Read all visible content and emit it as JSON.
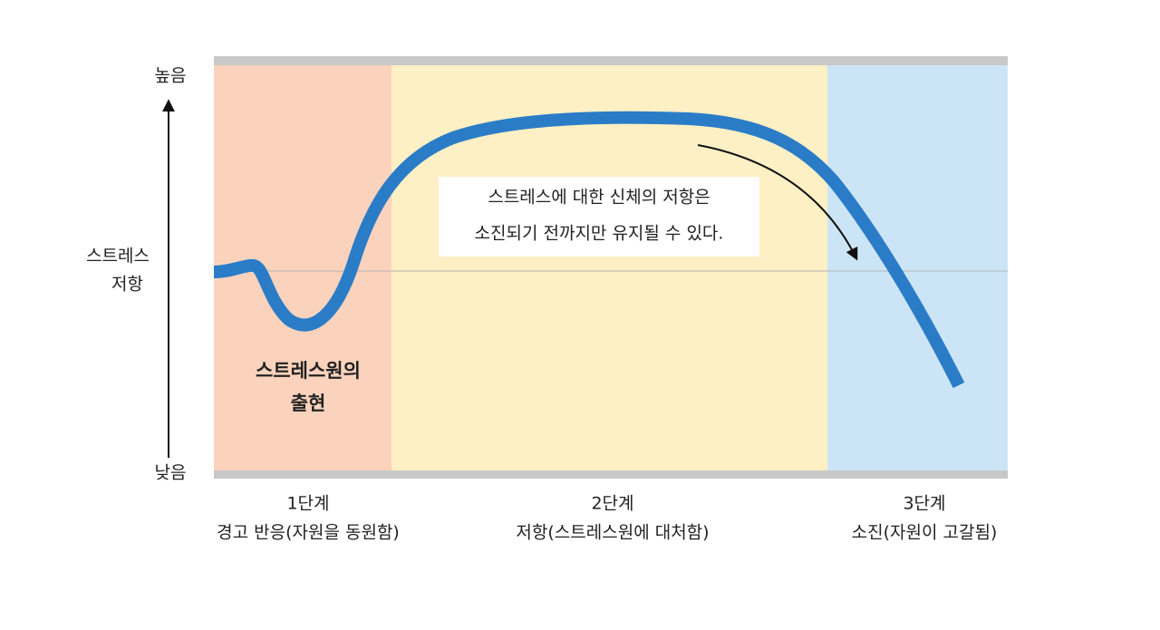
{
  "y_axis": {
    "high": "높음",
    "low": "낮음",
    "label": [
      "스트레스",
      "저항"
    ]
  },
  "annotation": [
    "스트레스에 대한 신체의 저항은",
    "소진되기 전까지만 유지될 수 있다."
  ],
  "stressor": [
    "스트레스원의",
    "출현"
  ],
  "stages": [
    {
      "title": "1단계",
      "description": "경고 반응(자원을 동원함)"
    },
    {
      "title": "2단계",
      "description": "저항(스트레스원에 대처함)"
    },
    {
      "title": "3단계",
      "description": "소진(자원이 고갈됨)"
    }
  ]
}
